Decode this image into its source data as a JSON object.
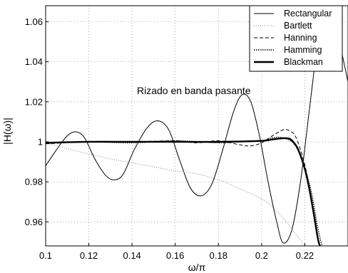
{
  "chart_data": {
    "type": "line",
    "title": "",
    "xlabel": "ω/π",
    "ylabel": "|H(ω)|",
    "xlim": [
      0.1,
      0.24
    ],
    "ylim": [
      0.948,
      1.068
    ],
    "grid": true,
    "legend_position": "top-right",
    "annotation": "Rizado en banda pasante",
    "x_ticks": [
      "0.1",
      "0.12",
      "0.14",
      "0.16",
      "0.18",
      "0.2",
      "0.22"
    ],
    "y_ticks": [
      "0.96",
      "0.98",
      "1",
      "1.02",
      "1.04",
      "1.06"
    ],
    "series": [
      {
        "name": "Rectangular",
        "style": "solid-thin",
        "points": [
          [
            0.1,
            0.988
          ],
          [
            0.105,
            0.996
          ],
          [
            0.11,
            1.003
          ],
          [
            0.114,
            1.005
          ],
          [
            0.118,
            1.002
          ],
          [
            0.123,
            0.991
          ],
          [
            0.128,
            0.983
          ],
          [
            0.132,
            0.981
          ],
          [
            0.136,
            0.984
          ],
          [
            0.141,
            0.996
          ],
          [
            0.147,
            1.007
          ],
          [
            0.152,
            1.0105
          ],
          [
            0.157,
            1.006
          ],
          [
            0.162,
            0.991
          ],
          [
            0.167,
            0.977
          ],
          [
            0.172,
            0.973
          ],
          [
            0.177,
            0.979
          ],
          [
            0.182,
            0.996
          ],
          [
            0.187,
            1.015
          ],
          [
            0.191,
            1.0235
          ],
          [
            0.195,
            1.02
          ],
          [
            0.199,
            1.003
          ],
          [
            0.203,
            0.98
          ],
          [
            0.207,
            0.96
          ],
          [
            0.21,
            0.9495
          ],
          [
            0.214,
            0.956
          ],
          [
            0.218,
            0.98
          ],
          [
            0.222,
            1.015
          ],
          [
            0.226,
            1.05
          ],
          [
            0.229,
            1.068
          ],
          [
            0.232,
            1.068
          ],
          [
            0.236,
            1.05
          ],
          [
            0.24,
            1.03
          ]
        ]
      },
      {
        "name": "Bartlett",
        "style": "dotted",
        "points": [
          [
            0.1,
            0.9995
          ],
          [
            0.105,
            0.998
          ],
          [
            0.11,
            0.9965
          ],
          [
            0.12,
            0.994
          ],
          [
            0.13,
            0.9915
          ],
          [
            0.14,
            0.9895
          ],
          [
            0.15,
            0.9875
          ],
          [
            0.16,
            0.9855
          ],
          [
            0.17,
            0.984
          ],
          [
            0.18,
            0.981
          ],
          [
            0.19,
            0.9765
          ],
          [
            0.2,
            0.9715
          ],
          [
            0.205,
            0.9675
          ],
          [
            0.21,
            0.962
          ],
          [
            0.215,
            0.955
          ],
          [
            0.22,
            0.948
          ]
        ]
      },
      {
        "name": "Hanning",
        "style": "dashed",
        "points": [
          [
            0.1,
            0.999
          ],
          [
            0.12,
            1.0
          ],
          [
            0.14,
            1.0
          ],
          [
            0.16,
            1.0005
          ],
          [
            0.17,
            0.9995
          ],
          [
            0.18,
            1.0005
          ],
          [
            0.19,
            0.9985
          ],
          [
            0.195,
            0.998
          ],
          [
            0.2,
            0.9995
          ],
          [
            0.205,
            1.003
          ],
          [
            0.21,
            1.006
          ],
          [
            0.213,
            1.0055
          ],
          [
            0.216,
            1.002
          ],
          [
            0.22,
            0.9885
          ],
          [
            0.223,
            0.972
          ],
          [
            0.226,
            0.953
          ],
          [
            0.227,
            0.948
          ]
        ]
      },
      {
        "name": "Hamming",
        "style": "dash-dot",
        "points": [
          [
            0.1,
            0.9995
          ],
          [
            0.12,
            1.0
          ],
          [
            0.14,
            0.9995
          ],
          [
            0.16,
            1.0005
          ],
          [
            0.18,
            0.9995
          ],
          [
            0.19,
            1.0
          ],
          [
            0.2,
            1.0005
          ],
          [
            0.205,
            1.002
          ],
          [
            0.21,
            1.002
          ],
          [
            0.215,
            0.999
          ],
          [
            0.219,
            0.99
          ],
          [
            0.223,
            0.975
          ],
          [
            0.226,
            0.957
          ],
          [
            0.228,
            0.948
          ]
        ]
      },
      {
        "name": "Blackman",
        "style": "solid-thick",
        "points": [
          [
            0.1,
            0.9995
          ],
          [
            0.12,
            1.0
          ],
          [
            0.14,
            1.0
          ],
          [
            0.16,
            1.0
          ],
          [
            0.18,
            1.0
          ],
          [
            0.2,
            1.0005
          ],
          [
            0.205,
            1.0012
          ],
          [
            0.21,
            1.0018
          ],
          [
            0.213,
            1.0015
          ],
          [
            0.215,
            0.9995
          ],
          [
            0.217,
            0.996
          ],
          [
            0.22,
            0.9865
          ],
          [
            0.222,
            0.977
          ],
          [
            0.224,
            0.965
          ],
          [
            0.226,
            0.952
          ],
          [
            0.227,
            0.948
          ]
        ]
      }
    ]
  }
}
